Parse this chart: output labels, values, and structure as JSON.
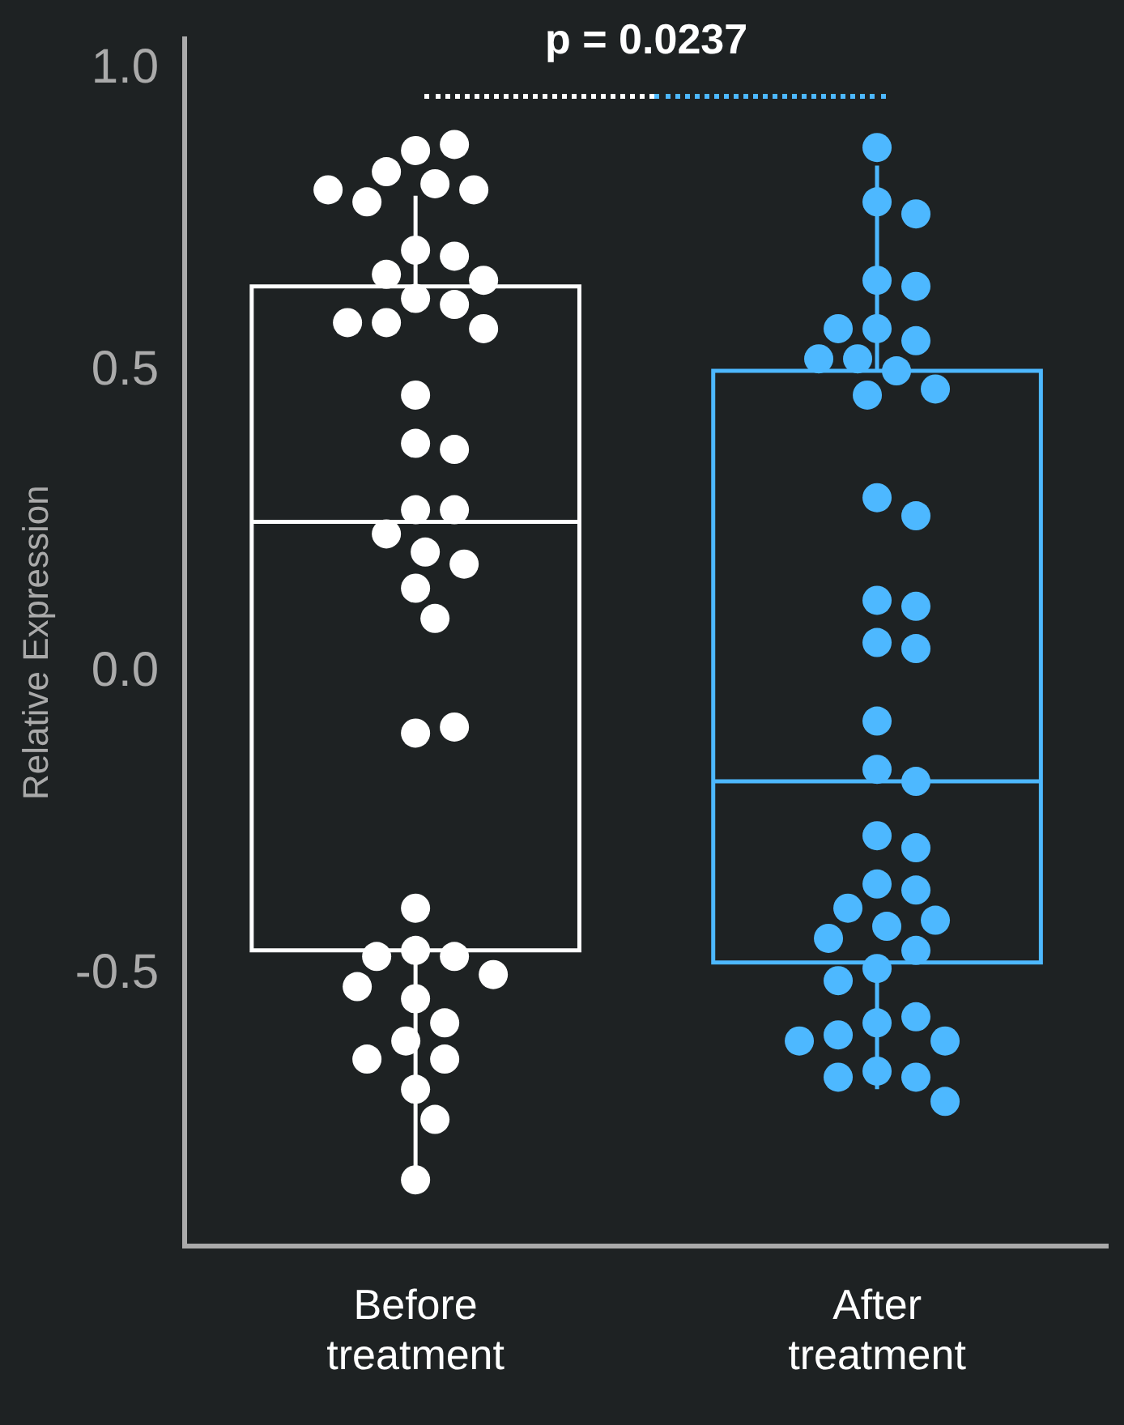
{
  "chart_data": {
    "type": "box",
    "categories": [
      "Before treatment",
      "After treatment"
    ],
    "ylabel": "Relative Expression",
    "ylim": [
      -0.95,
      1.05
    ],
    "yticks": [
      {
        "value": -0.5,
        "label": "-0.5"
      },
      {
        "value": 0,
        "label": "0.0"
      },
      {
        "value": 0.5,
        "label": "0.5"
      },
      {
        "value": 1,
        "label": "1.0"
      }
    ],
    "colors": [
      "#ffffff",
      "#4db8ff"
    ],
    "boxes": [
      {
        "low": -0.83,
        "q1": -0.46,
        "median": 0.25,
        "q3": 0.64,
        "high": 0.79
      },
      {
        "low": -0.69,
        "q1": -0.48,
        "median": -0.18,
        "q3": 0.5,
        "high": 0.84
      }
    ],
    "series": [
      {
        "type": "scatter",
        "color": "#ffffff",
        "x": [
          "Before treatment",
          "Before treatment",
          "Before treatment",
          "Before treatment",
          "Before treatment",
          "Before treatment",
          "Before treatment",
          "Before treatment",
          "Before treatment",
          "Before treatment",
          "Before treatment",
          "Before treatment",
          "Before treatment",
          "Before treatment",
          "Before treatment",
          "Before treatment",
          "Before treatment",
          "Before treatment",
          "Before treatment",
          "Before treatment",
          "Before treatment",
          "Before treatment",
          "Before treatment",
          "Before treatment",
          "Before treatment",
          "Before treatment",
          "Before treatment",
          "Before treatment",
          "Before treatment",
          "Before treatment",
          "Before treatment",
          "Before treatment",
          "Before treatment",
          "Before treatment",
          "Before treatment",
          "Before treatment",
          "Before treatment",
          "Before treatment",
          "Before treatment",
          "Before treatment",
          "Before treatment",
          "Before treatment"
        ],
        "values": [
          0.865,
          0.875,
          0.83,
          0.81,
          0.8,
          0.78,
          0.8,
          0.7,
          0.69,
          0.66,
          0.65,
          0.62,
          0.61,
          0.58,
          0.58,
          0.57,
          0.46,
          0.38,
          0.37,
          0.27,
          0.27,
          0.23,
          0.2,
          0.18,
          0.14,
          0.09,
          -0.1,
          -0.09,
          -0.39,
          -0.46,
          -0.47,
          -0.47,
          -0.5,
          -0.54,
          -0.52,
          -0.58,
          -0.61,
          -0.64,
          -0.64,
          -0.69,
          -0.74,
          -0.84
        ]
      },
      {
        "type": "scatter",
        "color": "#4db8ff",
        "x": [
          "After treatment",
          "After treatment",
          "After treatment",
          "After treatment",
          "After treatment",
          "After treatment",
          "After treatment",
          "After treatment",
          "After treatment",
          "After treatment",
          "After treatment",
          "After treatment",
          "After treatment",
          "After treatment",
          "After treatment",
          "After treatment",
          "After treatment",
          "After treatment",
          "After treatment",
          "After treatment",
          "After treatment",
          "After treatment",
          "After treatment",
          "After treatment",
          "After treatment",
          "After treatment",
          "After treatment",
          "After treatment",
          "After treatment",
          "After treatment",
          "After treatment",
          "After treatment",
          "After treatment",
          "After treatment",
          "After treatment",
          "After treatment",
          "After treatment",
          "After treatment",
          "After treatment",
          "After treatment",
          "After treatment",
          "After treatment"
        ],
        "values": [
          0.87,
          0.78,
          0.76,
          0.65,
          0.64,
          0.57,
          0.55,
          0.52,
          0.57,
          0.52,
          0.5,
          0.46,
          0.47,
          0.29,
          0.26,
          0.12,
          0.11,
          0.05,
          0.04,
          -0.08,
          -0.16,
          -0.18,
          -0.27,
          -0.29,
          -0.35,
          -0.36,
          -0.39,
          -0.42,
          -0.41,
          -0.44,
          -0.46,
          -0.49,
          -0.51,
          -0.58,
          -0.57,
          -0.6,
          -0.61,
          -0.61,
          -0.66,
          -0.67,
          -0.67,
          -0.71
        ]
      }
    ],
    "annotations": [
      "p = 0.0237"
    ],
    "legend": false,
    "grid": false,
    "marker": "circle"
  }
}
